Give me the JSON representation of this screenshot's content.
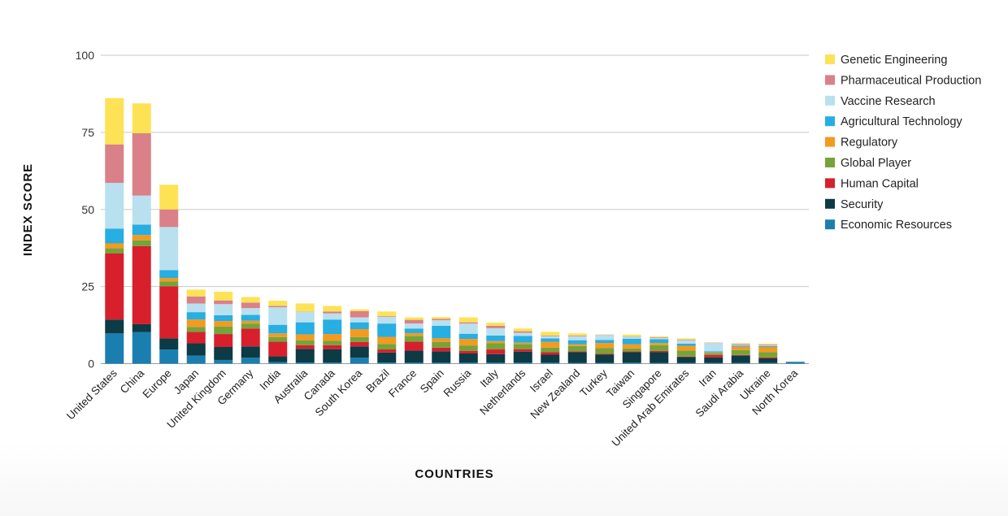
{
  "chart_data": {
    "type": "bar",
    "stacked": true,
    "title": "",
    "xlabel": "COUNTRIES",
    "ylabel": "INDEX SCORE",
    "ylim": [
      0,
      100
    ],
    "yticks": [
      0,
      25,
      50,
      75,
      100
    ],
    "grid": true,
    "legend_position": "right",
    "categories": [
      "United States",
      "China",
      "Europe",
      "Japan",
      "United Kingdom",
      "Germany",
      "India",
      "Australia",
      "Canada",
      "South Korea",
      "Brazil",
      "France",
      "Spain",
      "Russia",
      "Italy",
      "Netherlands",
      "Israel",
      "New Zealand",
      "Turkey",
      "Taiwan",
      "Singapore",
      "United Arab Emirates",
      "Iran",
      "Saudi Arabia",
      "Ukraine",
      "North Korea"
    ],
    "series": [
      {
        "name": "Economic Resources",
        "color": "#1a7fb0",
        "values": [
          9.8,
          10.2,
          4.6,
          2.6,
          1.2,
          1.9,
          0.5,
          0.4,
          0.4,
          1.9,
          0.4,
          0.3,
          0.3,
          0.3,
          0.3,
          0.3,
          0.3,
          0.2,
          0.2,
          0.3,
          0.2,
          0.2,
          0.2,
          0.2,
          0.2,
          0.6
        ]
      },
      {
        "name": "Security",
        "color": "#0c3a45",
        "values": [
          4.5,
          2.6,
          3.6,
          4.0,
          4.2,
          3.7,
          1.9,
          4.4,
          4.3,
          3.7,
          3.2,
          3.9,
          3.7,
          3.0,
          2.8,
          3.6,
          2.6,
          3.5,
          2.7,
          3.4,
          3.5,
          1.9,
          1.8,
          2.4,
          1.5,
          0.0
        ]
      },
      {
        "name": "Human Capital",
        "color": "#d7202c",
        "values": [
          21.5,
          25.3,
          16.9,
          3.7,
          4.2,
          5.8,
          4.7,
          1.2,
          1.3,
          1.4,
          1.0,
          2.9,
          1.2,
          0.8,
          1.5,
          0.8,
          0.8,
          0.3,
          0.3,
          0.3,
          0.4,
          0.2,
          0.8,
          0.2,
          0.3,
          0.0
        ]
      },
      {
        "name": "Global Player",
        "color": "#76a33b",
        "values": [
          1.6,
          1.9,
          1.6,
          1.6,
          2.4,
          1.6,
          1.5,
          1.6,
          1.4,
          1.6,
          1.8,
          1.9,
          1.8,
          1.8,
          2.0,
          1.6,
          1.5,
          1.7,
          1.8,
          0.9,
          1.9,
          1.9,
          0.5,
          1.6,
          1.7,
          0.0
        ]
      },
      {
        "name": "Regulatory",
        "color": "#f39a1f",
        "values": [
          1.6,
          1.7,
          1.1,
          2.4,
          1.8,
          0.9,
          1.2,
          1.9,
          2.2,
          2.6,
          2.3,
          0.9,
          1.2,
          2.1,
          0.7,
          0.5,
          1.9,
          0.6,
          1.7,
          1.4,
          0.7,
          1.6,
          0.3,
          1.1,
          1.7,
          0.0
        ]
      },
      {
        "name": "Agricultural Technology",
        "color": "#27aee3",
        "values": [
          4.8,
          3.4,
          2.5,
          2.4,
          1.9,
          1.9,
          2.8,
          3.9,
          4.7,
          2.2,
          4.3,
          1.5,
          4.1,
          1.7,
          1.8,
          2.2,
          1.1,
          1.3,
          1.0,
          1.8,
          1.2,
          0.7,
          0.4,
          0.3,
          0.3,
          0.0
        ]
      },
      {
        "name": "Vaccine Research",
        "color": "#b9e0ee",
        "values": [
          14.8,
          9.4,
          14.0,
          2.8,
          3.6,
          2.2,
          5.7,
          3.4,
          2.0,
          1.6,
          2.2,
          1.6,
          1.8,
          3.3,
          2.4,
          1.0,
          0.7,
          1.3,
          1.6,
          0.6,
          0.4,
          1.1,
          2.7,
          0.3,
          0.3,
          0.0
        ]
      },
      {
        "name": "Pharmaceutical Production",
        "color": "#da8088",
        "values": [
          12.5,
          20.2,
          5.7,
          2.3,
          1.2,
          1.8,
          0.4,
          0.1,
          0.6,
          2.0,
          0.2,
          1.2,
          0.4,
          0.4,
          0.8,
          0.5,
          0.2,
          0.2,
          0.1,
          0.1,
          0.2,
          0.2,
          0.1,
          0.3,
          0.2,
          0.0
        ]
      },
      {
        "name": "Genetic Engineering",
        "color": "#fde255",
        "values": [
          15.0,
          9.7,
          8.0,
          2.2,
          2.8,
          1.8,
          1.7,
          2.6,
          1.8,
          0.6,
          1.5,
          0.8,
          0.6,
          1.6,
          1.0,
          0.9,
          1.2,
          0.7,
          0.1,
          0.6,
          0.3,
          0.4,
          0.1,
          0.2,
          0.3,
          0.0
        ]
      }
    ]
  }
}
